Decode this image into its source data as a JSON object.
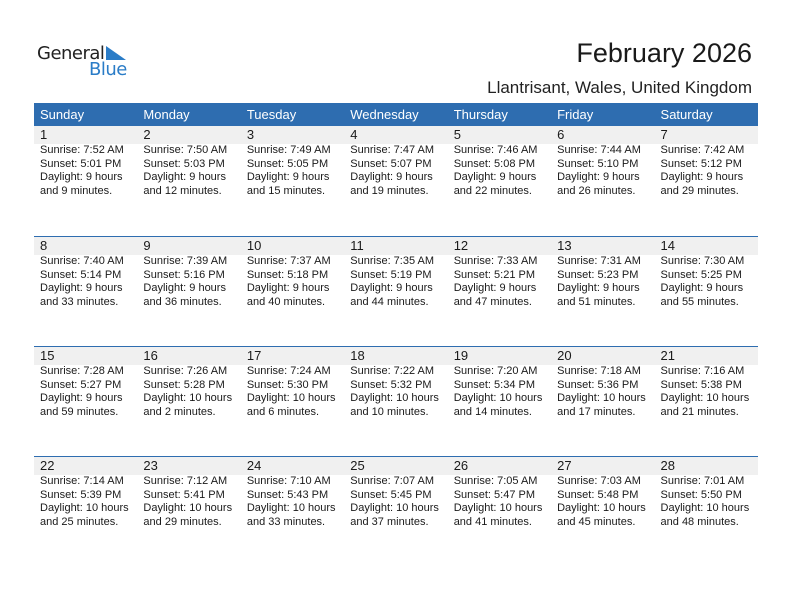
{
  "logo": {
    "word1": "General",
    "word2": "Blue"
  },
  "header": {
    "title": "February 2026",
    "location": "Llantrisant, Wales, United Kingdom"
  },
  "colors": {
    "accent": "#2e6db0",
    "date_strip": "#f0f0f0",
    "logo_blue": "#2a7cc7"
  },
  "weekdays": [
    "Sunday",
    "Monday",
    "Tuesday",
    "Wednesday",
    "Thursday",
    "Friday",
    "Saturday"
  ],
  "weeks": [
    [
      {
        "day": "1",
        "sunrise": "Sunrise: 7:52 AM",
        "sunset": "Sunset: 5:01 PM",
        "daylight1": "Daylight: 9 hours",
        "daylight2": "and 9 minutes."
      },
      {
        "day": "2",
        "sunrise": "Sunrise: 7:50 AM",
        "sunset": "Sunset: 5:03 PM",
        "daylight1": "Daylight: 9 hours",
        "daylight2": "and 12 minutes."
      },
      {
        "day": "3",
        "sunrise": "Sunrise: 7:49 AM",
        "sunset": "Sunset: 5:05 PM",
        "daylight1": "Daylight: 9 hours",
        "daylight2": "and 15 minutes."
      },
      {
        "day": "4",
        "sunrise": "Sunrise: 7:47 AM",
        "sunset": "Sunset: 5:07 PM",
        "daylight1": "Daylight: 9 hours",
        "daylight2": "and 19 minutes."
      },
      {
        "day": "5",
        "sunrise": "Sunrise: 7:46 AM",
        "sunset": "Sunset: 5:08 PM",
        "daylight1": "Daylight: 9 hours",
        "daylight2": "and 22 minutes."
      },
      {
        "day": "6",
        "sunrise": "Sunrise: 7:44 AM",
        "sunset": "Sunset: 5:10 PM",
        "daylight1": "Daylight: 9 hours",
        "daylight2": "and 26 minutes."
      },
      {
        "day": "7",
        "sunrise": "Sunrise: 7:42 AM",
        "sunset": "Sunset: 5:12 PM",
        "daylight1": "Daylight: 9 hours",
        "daylight2": "and 29 minutes."
      }
    ],
    [
      {
        "day": "8",
        "sunrise": "Sunrise: 7:40 AM",
        "sunset": "Sunset: 5:14 PM",
        "daylight1": "Daylight: 9 hours",
        "daylight2": "and 33 minutes."
      },
      {
        "day": "9",
        "sunrise": "Sunrise: 7:39 AM",
        "sunset": "Sunset: 5:16 PM",
        "daylight1": "Daylight: 9 hours",
        "daylight2": "and 36 minutes."
      },
      {
        "day": "10",
        "sunrise": "Sunrise: 7:37 AM",
        "sunset": "Sunset: 5:18 PM",
        "daylight1": "Daylight: 9 hours",
        "daylight2": "and 40 minutes."
      },
      {
        "day": "11",
        "sunrise": "Sunrise: 7:35 AM",
        "sunset": "Sunset: 5:19 PM",
        "daylight1": "Daylight: 9 hours",
        "daylight2": "and 44 minutes."
      },
      {
        "day": "12",
        "sunrise": "Sunrise: 7:33 AM",
        "sunset": "Sunset: 5:21 PM",
        "daylight1": "Daylight: 9 hours",
        "daylight2": "and 47 minutes."
      },
      {
        "day": "13",
        "sunrise": "Sunrise: 7:31 AM",
        "sunset": "Sunset: 5:23 PM",
        "daylight1": "Daylight: 9 hours",
        "daylight2": "and 51 minutes."
      },
      {
        "day": "14",
        "sunrise": "Sunrise: 7:30 AM",
        "sunset": "Sunset: 5:25 PM",
        "daylight1": "Daylight: 9 hours",
        "daylight2": "and 55 minutes."
      }
    ],
    [
      {
        "day": "15",
        "sunrise": "Sunrise: 7:28 AM",
        "sunset": "Sunset: 5:27 PM",
        "daylight1": "Daylight: 9 hours",
        "daylight2": "and 59 minutes."
      },
      {
        "day": "16",
        "sunrise": "Sunrise: 7:26 AM",
        "sunset": "Sunset: 5:28 PM",
        "daylight1": "Daylight: 10 hours",
        "daylight2": "and 2 minutes."
      },
      {
        "day": "17",
        "sunrise": "Sunrise: 7:24 AM",
        "sunset": "Sunset: 5:30 PM",
        "daylight1": "Daylight: 10 hours",
        "daylight2": "and 6 minutes."
      },
      {
        "day": "18",
        "sunrise": "Sunrise: 7:22 AM",
        "sunset": "Sunset: 5:32 PM",
        "daylight1": "Daylight: 10 hours",
        "daylight2": "and 10 minutes."
      },
      {
        "day": "19",
        "sunrise": "Sunrise: 7:20 AM",
        "sunset": "Sunset: 5:34 PM",
        "daylight1": "Daylight: 10 hours",
        "daylight2": "and 14 minutes."
      },
      {
        "day": "20",
        "sunrise": "Sunrise: 7:18 AM",
        "sunset": "Sunset: 5:36 PM",
        "daylight1": "Daylight: 10 hours",
        "daylight2": "and 17 minutes."
      },
      {
        "day": "21",
        "sunrise": "Sunrise: 7:16 AM",
        "sunset": "Sunset: 5:38 PM",
        "daylight1": "Daylight: 10 hours",
        "daylight2": "and 21 minutes."
      }
    ],
    [
      {
        "day": "22",
        "sunrise": "Sunrise: 7:14 AM",
        "sunset": "Sunset: 5:39 PM",
        "daylight1": "Daylight: 10 hours",
        "daylight2": "and 25 minutes."
      },
      {
        "day": "23",
        "sunrise": "Sunrise: 7:12 AM",
        "sunset": "Sunset: 5:41 PM",
        "daylight1": "Daylight: 10 hours",
        "daylight2": "and 29 minutes."
      },
      {
        "day": "24",
        "sunrise": "Sunrise: 7:10 AM",
        "sunset": "Sunset: 5:43 PM",
        "daylight1": "Daylight: 10 hours",
        "daylight2": "and 33 minutes."
      },
      {
        "day": "25",
        "sunrise": "Sunrise: 7:07 AM",
        "sunset": "Sunset: 5:45 PM",
        "daylight1": "Daylight: 10 hours",
        "daylight2": "and 37 minutes."
      },
      {
        "day": "26",
        "sunrise": "Sunrise: 7:05 AM",
        "sunset": "Sunset: 5:47 PM",
        "daylight1": "Daylight: 10 hours",
        "daylight2": "and 41 minutes."
      },
      {
        "day": "27",
        "sunrise": "Sunrise: 7:03 AM",
        "sunset": "Sunset: 5:48 PM",
        "daylight1": "Daylight: 10 hours",
        "daylight2": "and 45 minutes."
      },
      {
        "day": "28",
        "sunrise": "Sunrise: 7:01 AM",
        "sunset": "Sunset: 5:50 PM",
        "daylight1": "Daylight: 10 hours",
        "daylight2": "and 48 minutes."
      }
    ]
  ]
}
